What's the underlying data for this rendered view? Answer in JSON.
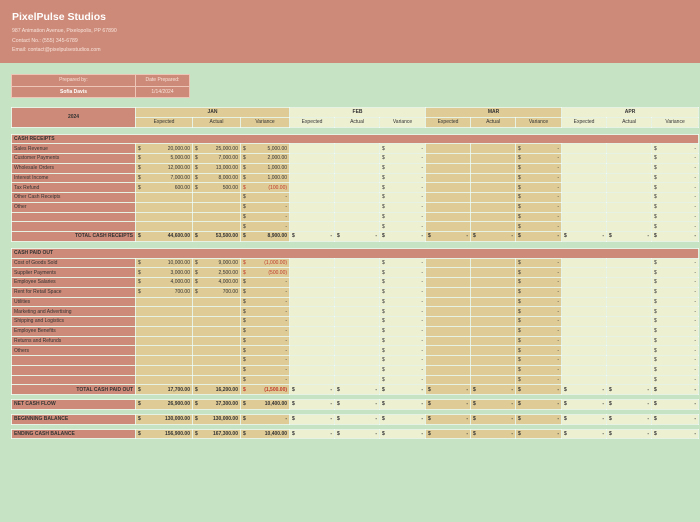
{
  "company": {
    "name": "PixelPulse Studios",
    "address": "987 Animation Avenue, Pixelopolis, PP 67890",
    "contact": "Contact No.: (555) 345-6789",
    "email": "Email: contact@pixelpulsestudios.com"
  },
  "prepared": {
    "prepared_by_label": "Prepared by:",
    "prepared_by": "Sofia Davis",
    "date_label": "Date Prepared:",
    "date": "1/14/2024"
  },
  "year": "2024",
  "months": [
    "JAN",
    "FEB",
    "MAR",
    "APR"
  ],
  "subheaders": [
    "Expected",
    "Actual",
    "Variance"
  ],
  "currency": "$",
  "dash": "-",
  "colors": {
    "header": "#cd8a78",
    "background": "#c6e3c4",
    "month_tan": "#dfcb96",
    "month_light": "#eef0d2",
    "negative": "#c0392b"
  },
  "receipts": {
    "title": "CASH RECEIPTS",
    "rows": [
      {
        "label": "Sales Revenue",
        "jan": [
          "20,000.00",
          "25,000.00",
          "5,000.00"
        ]
      },
      {
        "label": "Customer Payments",
        "jan": [
          "5,000.00",
          "7,000.00",
          "2,000.00"
        ]
      },
      {
        "label": "Wholesale Orders",
        "jan": [
          "12,000.00",
          "13,000.00",
          "1,000.00"
        ]
      },
      {
        "label": "Interest Income",
        "jan": [
          "7,000.00",
          "8,000.00",
          "1,000.00"
        ]
      },
      {
        "label": "Tax Refund",
        "jan": [
          "600.00",
          "500.00",
          "(100.00)"
        ],
        "neg": true
      },
      {
        "label": "Other Cash Receipts",
        "jan": [
          "",
          "",
          "-"
        ]
      },
      {
        "label": "Other",
        "jan": [
          "",
          "",
          "-"
        ]
      },
      {
        "label": "",
        "jan": [
          "",
          "",
          "-"
        ]
      },
      {
        "label": "",
        "jan": [
          "",
          "",
          "-"
        ]
      }
    ],
    "total": {
      "label": "TOTAL CASH RECEIPTS",
      "jan": [
        "44,600.00",
        "53,500.00",
        "8,900.00"
      ]
    }
  },
  "paid_out": {
    "title": "CASH PAID OUT",
    "rows": [
      {
        "label": "Cost of Goods Sold",
        "jan": [
          "10,000.00",
          "9,000.00",
          "(1,000.00)"
        ],
        "neg": true
      },
      {
        "label": "Supplier Payments",
        "jan": [
          "3,000.00",
          "2,500.00",
          "(500.00)"
        ],
        "neg": true
      },
      {
        "label": "Employee Salaries",
        "jan": [
          "4,000.00",
          "4,000.00",
          "-"
        ]
      },
      {
        "label": "Rent for Retail Space",
        "jan": [
          "700.00",
          "700.00",
          "-"
        ]
      },
      {
        "label": "Utilities",
        "jan": [
          "",
          "",
          "-"
        ]
      },
      {
        "label": "Marketing and Advertising",
        "jan": [
          "",
          "",
          "-"
        ]
      },
      {
        "label": "Shipping and Logistics",
        "jan": [
          "",
          "",
          "-"
        ]
      },
      {
        "label": "Employee Benefits",
        "jan": [
          "",
          "",
          "-"
        ]
      },
      {
        "label": "Returns and Refunds",
        "jan": [
          "",
          "",
          "-"
        ]
      },
      {
        "label": "Others",
        "jan": [
          "",
          "",
          "-"
        ]
      },
      {
        "label": "",
        "jan": [
          "",
          "",
          "-"
        ]
      },
      {
        "label": "",
        "jan": [
          "",
          "",
          "-"
        ]
      },
      {
        "label": "",
        "jan": [
          "",
          "",
          "-"
        ]
      }
    ],
    "total": {
      "label": "TOTAL CASH PAID OUT",
      "jan": [
        "17,700.00",
        "16,200.00",
        "(1,500.00)"
      ],
      "neg": true
    }
  },
  "summary": [
    {
      "label": "NET CASH FLOW",
      "jan": [
        "26,900.00",
        "37,300.00",
        "10,400.00"
      ]
    },
    {
      "label": "BEGINNING BALANCE",
      "jan": [
        "130,000.00",
        "130,000.00",
        "-"
      ]
    },
    {
      "label": "ENDING CASH BALANCE",
      "jan": [
        "156,900.00",
        "167,300.00",
        "10,400.00"
      ]
    }
  ]
}
